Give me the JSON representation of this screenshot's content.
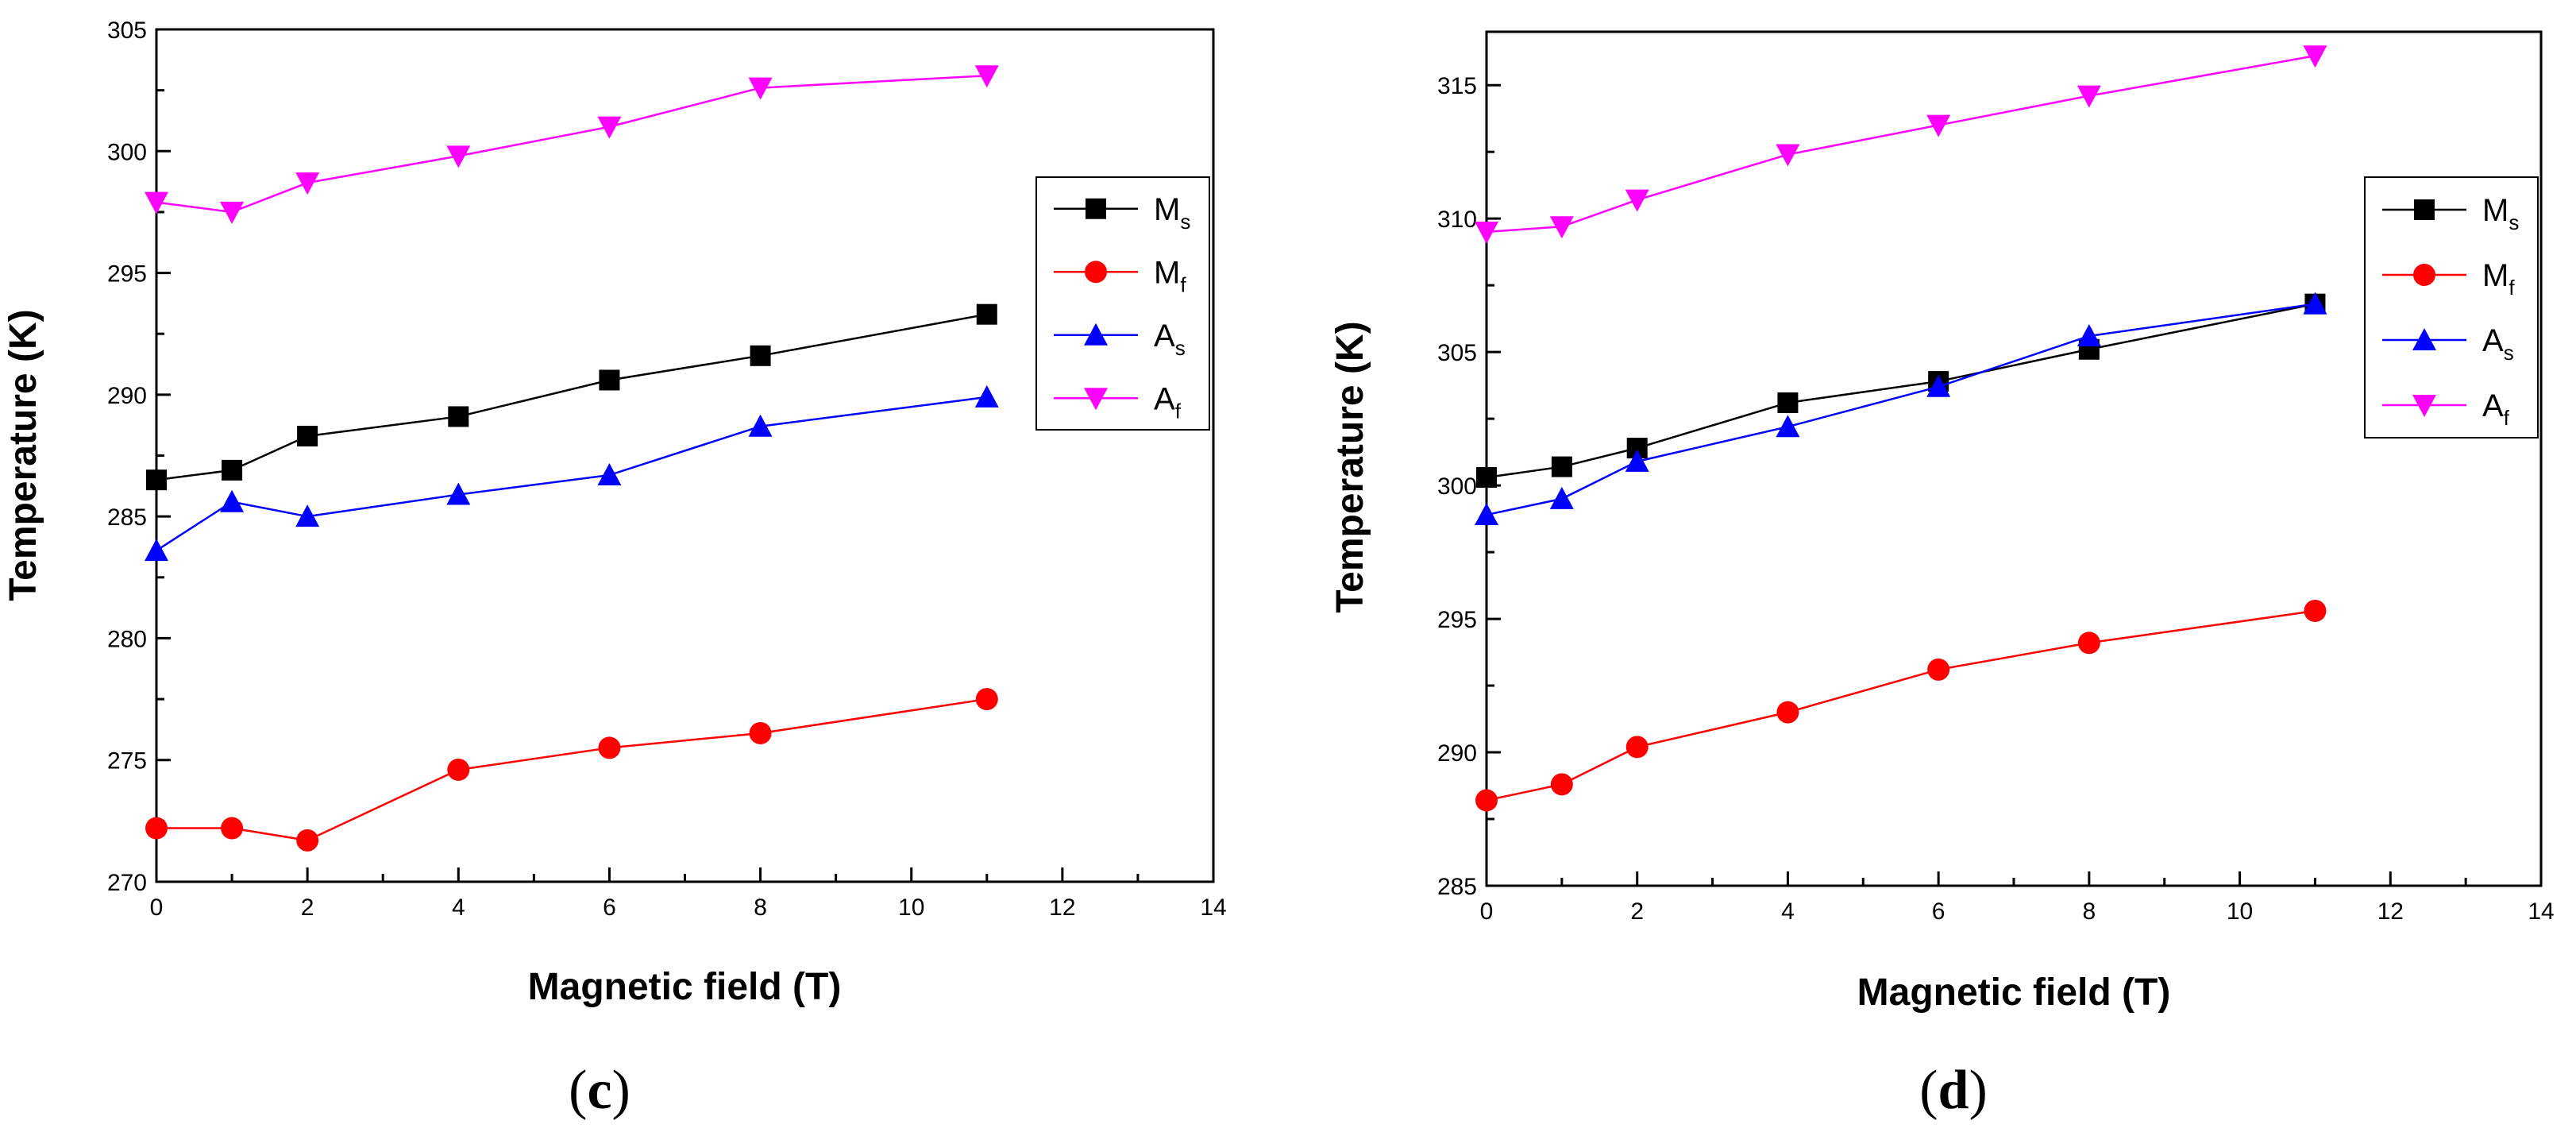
{
  "chart_data": [
    {
      "type": "line",
      "panel_label": {
        "open": "(",
        "letter": "c",
        "close": ")"
      },
      "xlabel": "Magnetic field (T)",
      "ylabel": "Temperature (K)",
      "xlim": [
        0,
        14
      ],
      "ylim": [
        270,
        305
      ],
      "xticks": [
        "0",
        "2",
        "4",
        "6",
        "8",
        "10",
        "12",
        "14"
      ],
      "yticks": [
        "270",
        "275",
        "280",
        "285",
        "290",
        "295",
        "300",
        "305"
      ],
      "legend_position": "upper-right",
      "x": [
        0,
        1,
        2,
        4,
        6,
        8,
        11
      ],
      "series": [
        {
          "name": "Ms",
          "base": "M",
          "sub": "s",
          "color": "#000000",
          "marker": "square",
          "values": [
            286.5,
            286.9,
            288.3,
            289.1,
            290.6,
            291.6,
            293.3
          ]
        },
        {
          "name": "Mf",
          "base": "M",
          "sub": "f",
          "color": "#ff0000",
          "marker": "circle",
          "values": [
            272.2,
            272.2,
            271.7,
            274.6,
            275.5,
            276.1,
            277.5
          ]
        },
        {
          "name": "As",
          "base": "A",
          "sub": "s",
          "color": "#0000ff",
          "marker": "triangle-up",
          "values": [
            283.6,
            285.6,
            285.0,
            285.9,
            286.7,
            288.7,
            289.9
          ]
        },
        {
          "name": "Af",
          "base": "A",
          "sub": "f",
          "color": "#ff00ff",
          "marker": "triangle-down",
          "values": [
            297.9,
            297.5,
            298.7,
            299.8,
            301.0,
            302.6,
            303.1
          ]
        }
      ]
    },
    {
      "type": "line",
      "panel_label": {
        "open": "(",
        "letter": "d",
        "close": ")"
      },
      "xlabel": "Magnetic field (T)",
      "ylabel": "Temperature (K)",
      "xlim": [
        0,
        14
      ],
      "ylim": [
        285,
        317
      ],
      "xticks": [
        "0",
        "2",
        "4",
        "6",
        "8",
        "10",
        "12",
        "14"
      ],
      "yticks": [
        "285",
        "290",
        "295",
        "300",
        "305",
        "310",
        "315"
      ],
      "legend_position": "upper-right",
      "x": [
        0,
        1,
        2,
        4,
        6,
        8,
        11
      ],
      "series": [
        {
          "name": "Ms",
          "base": "M",
          "sub": "s",
          "color": "#000000",
          "marker": "square",
          "values": [
            300.3,
            300.7,
            301.4,
            303.1,
            303.9,
            305.1,
            306.8
          ]
        },
        {
          "name": "Mf",
          "base": "M",
          "sub": "f",
          "color": "#ff0000",
          "marker": "circle",
          "values": [
            288.2,
            288.8,
            290.2,
            291.5,
            293.1,
            294.1,
            295.3
          ]
        },
        {
          "name": "As",
          "base": "A",
          "sub": "s",
          "color": "#0000ff",
          "marker": "triangle-up",
          "values": [
            298.9,
            299.5,
            300.9,
            302.2,
            303.7,
            305.6,
            306.8
          ]
        },
        {
          "name": "Af",
          "base": "A",
          "sub": "f",
          "color": "#ff00ff",
          "marker": "triangle-down",
          "values": [
            309.5,
            309.7,
            310.7,
            312.4,
            313.5,
            314.6,
            316.1
          ]
        }
      ]
    }
  ]
}
